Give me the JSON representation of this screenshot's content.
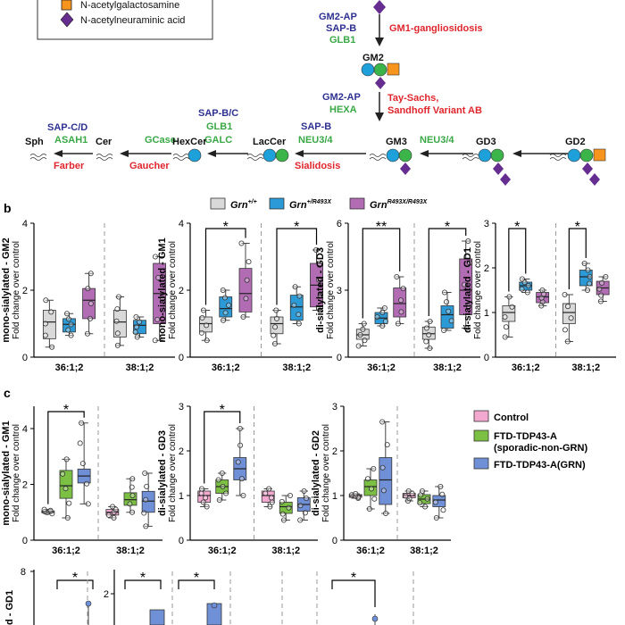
{
  "colors": {
    "wt": "#d9d9d9",
    "het": "#2b9ad6",
    "hom": "#b26cb4",
    "control": "#f2a8cf",
    "sporadic": "#7bc043",
    "grn": "#6f8fd6",
    "enzyme": "#2e3192",
    "gene": "#39a845",
    "disease": "#e0262d",
    "glc": "#1ea0db",
    "gal": "#3bb54a",
    "galnac": "#f7941d",
    "neu5ac": "#662d91"
  },
  "legend_top": {
    "items": [
      {
        "label": "N-acetylgalactosamine",
        "icon": "orange-square-icon"
      },
      {
        "label": "N-acetylneuraminic acid",
        "icon": "purple-diamond-icon"
      }
    ]
  },
  "pathway": {
    "gm1_step": {
      "enzyme1": "GM2-AP",
      "enzyme2": "SAP-B",
      "gene": "GLB1",
      "disease": "GM1-gangliosidosis"
    },
    "gm2_label": "GM2",
    "gm2_step": {
      "enzyme": "GM2-AP",
      "gene": "HEXA",
      "disease1": "Tay-Sachs,",
      "disease2": "Sandhoff Variant AB"
    },
    "nodes": {
      "sph": "Sph",
      "cer": "Cer",
      "hexcer": "HexCer",
      "laccer": "LacCer",
      "gm3": "GM3",
      "gd3": "GD3",
      "gd2": "GD2"
    },
    "sph_step": {
      "enzyme": "SAP-C/D",
      "gene": "ASAH1",
      "disease": "Farber"
    },
    "cer_step": {
      "gene": "GCase",
      "disease": "Gaucher"
    },
    "hexcer_step": {
      "enzyme": "SAP-B/C",
      "gene1": "GLB1",
      "gene2": "GALC"
    },
    "laccer_step": {
      "enzyme": "SAP-B",
      "gene": "NEU3/4",
      "disease": "Sialidosis"
    },
    "gd3_step": {
      "gene": "NEU3/4"
    }
  },
  "panel_b": {
    "letter": "b",
    "legend": [
      {
        "base": "Grn",
        "sup": "+/+"
      },
      {
        "base": "Grn",
        "sup": "+/R493X"
      },
      {
        "base": "Grn",
        "sup": "R493X/R493X"
      }
    ],
    "ylabel2": "Fold change over control",
    "plots": [
      {
        "title": "mono-sialylated - GM2",
        "ymax": 4,
        "yticks": [
          "0",
          "2",
          "4"
        ],
        "groups": [
          "36:1;2",
          "38:1;2"
        ],
        "sig": [],
        "boxes": [
          {
            "q1": 0.55,
            "med": 1.05,
            "q3": 1.4,
            "lo": 0.3,
            "hi": 1.7
          },
          {
            "q1": 0.75,
            "med": 0.98,
            "q3": 1.15,
            "lo": 0.65,
            "hi": 1.3
          },
          {
            "q1": 1.15,
            "med": 1.7,
            "q3": 2.05,
            "lo": 0.7,
            "hi": 2.5
          },
          {
            "q1": 0.6,
            "med": 1.05,
            "q3": 1.4,
            "lo": 0.35,
            "hi": 1.8
          },
          {
            "q1": 0.7,
            "med": 0.95,
            "q3": 1.1,
            "lo": 0.6,
            "hi": 1.2
          },
          {
            "q1": 1.0,
            "med": 1.9,
            "q3": 2.8,
            "lo": 0.5,
            "hi": 3.0
          }
        ]
      },
      {
        "title": "mono-sialylated - GM1",
        "ymax": 4,
        "yticks": [
          "0",
          "2",
          "4"
        ],
        "groups": [
          "36:1;2",
          "38:1;2"
        ],
        "sig": [
          {
            "from": 0,
            "to": 2,
            "label": "*"
          },
          {
            "from": 3,
            "to": 5,
            "label": "*"
          }
        ],
        "boxes": [
          {
            "q1": 0.75,
            "med": 1.0,
            "q3": 1.2,
            "lo": 0.5,
            "hi": 1.4
          },
          {
            "q1": 1.2,
            "med": 1.45,
            "q3": 1.8,
            "lo": 1.1,
            "hi": 2.0
          },
          {
            "q1": 1.35,
            "med": 1.9,
            "q3": 2.65,
            "lo": 1.2,
            "hi": 3.4
          },
          {
            "q1": 0.7,
            "med": 1.0,
            "q3": 1.2,
            "lo": 0.4,
            "hi": 1.4
          },
          {
            "q1": 1.1,
            "med": 1.5,
            "q3": 1.85,
            "lo": 1.0,
            "hi": 2.1
          },
          {
            "q1": 1.5,
            "med": 2.15,
            "q3": 2.8,
            "lo": 1.4,
            "hi": 3.2
          }
        ]
      },
      {
        "title": "di-sialylated - GD3",
        "ymax": 6,
        "yticks": [
          "0",
          "3",
          "6"
        ],
        "groups": [
          "36:1;2",
          "38:1;2"
        ],
        "sig": [
          {
            "from": 0,
            "to": 2,
            "label": "**"
          },
          {
            "from": 3,
            "to": 5,
            "label": "*"
          }
        ],
        "boxes": [
          {
            "q1": 0.8,
            "med": 1.0,
            "q3": 1.25,
            "lo": 0.5,
            "hi": 1.5
          },
          {
            "q1": 1.5,
            "med": 1.75,
            "q3": 2.0,
            "lo": 1.4,
            "hi": 2.2
          },
          {
            "q1": 1.8,
            "med": 2.4,
            "q3": 3.1,
            "lo": 1.5,
            "hi": 3.6
          },
          {
            "q1": 0.8,
            "med": 1.05,
            "q3": 1.35,
            "lo": 0.4,
            "hi": 1.6
          },
          {
            "q1": 1.3,
            "med": 1.9,
            "q3": 2.3,
            "lo": 1.2,
            "hi": 2.9
          },
          {
            "q1": 1.9,
            "med": 3.0,
            "q3": 4.4,
            "lo": 1.3,
            "hi": 5.2
          }
        ]
      },
      {
        "title": "di-sialylated - GD1",
        "ymax": 3,
        "yticks": [
          "0",
          "1",
          "2",
          "3"
        ],
        "groups": [
          "36:1;2",
          "38:1;2"
        ],
        "sig": [
          {
            "from": 0,
            "to": 1,
            "label": "*"
          },
          {
            "from": 3,
            "to": 4,
            "label": "*"
          }
        ],
        "boxes": [
          {
            "q1": 0.8,
            "med": 1.0,
            "q3": 1.15,
            "lo": 0.45,
            "hi": 1.35
          },
          {
            "q1": 1.5,
            "med": 1.6,
            "q3": 1.68,
            "lo": 1.45,
            "hi": 1.75
          },
          {
            "q1": 1.22,
            "med": 1.35,
            "q3": 1.45,
            "lo": 1.15,
            "hi": 1.5
          },
          {
            "q1": 0.75,
            "med": 1.0,
            "q3": 1.2,
            "lo": 0.35,
            "hi": 1.4
          },
          {
            "q1": 1.6,
            "med": 1.8,
            "q3": 1.95,
            "lo": 1.5,
            "hi": 2.1
          },
          {
            "q1": 1.4,
            "med": 1.55,
            "q3": 1.7,
            "lo": 1.25,
            "hi": 1.8
          }
        ]
      }
    ]
  },
  "panel_c": {
    "letter": "c",
    "legend": [
      "Control",
      "FTD-TDP43-A",
      "(sporadic-non-GRN)",
      "FTD-TDP43-A(GRN)"
    ],
    "ylabel2": "Fold change over control",
    "plots": [
      {
        "title": "mono-sialylated - GM1",
        "ymax": 4.8,
        "yticks": [
          "0",
          "2",
          "4"
        ],
        "tickvals": [
          0,
          2,
          4
        ],
        "groups": [
          "36:1;2",
          "38:1;2"
        ],
        "sig": [
          {
            "from": 0,
            "to": 2,
            "label": "*"
          }
        ],
        "boxes": [
          {
            "q1": 0.98,
            "med": 1.0,
            "q3": 1.05,
            "lo": 0.95,
            "hi": 1.1
          },
          {
            "q1": 1.5,
            "med": 1.95,
            "q3": 2.5,
            "lo": 0.8,
            "hi": 2.9
          },
          {
            "q1": 2.05,
            "med": 2.3,
            "q3": 2.55,
            "lo": 1.3,
            "hi": 4.2
          },
          {
            "q1": 0.9,
            "med": 1.0,
            "q3": 1.1,
            "lo": 0.8,
            "hi": 1.2
          },
          {
            "q1": 1.25,
            "med": 1.45,
            "q3": 1.7,
            "lo": 1.0,
            "hi": 2.2
          },
          {
            "q1": 1.0,
            "med": 1.4,
            "q3": 1.75,
            "lo": 0.5,
            "hi": 2.4
          }
        ]
      },
      {
        "title": "di-sialylated - GD3",
        "ymax": 3,
        "yticks": [
          "0",
          "1",
          "2",
          "3"
        ],
        "tickvals": [
          0,
          1,
          2,
          3
        ],
        "groups": [
          "36:1;2",
          "38:1;2"
        ],
        "sig": [
          {
            "from": 0,
            "to": 2,
            "label": "*"
          }
        ],
        "boxes": [
          {
            "q1": 0.85,
            "med": 1.0,
            "q3": 1.1,
            "lo": 0.75,
            "hi": 1.15
          },
          {
            "q1": 1.05,
            "med": 1.2,
            "q3": 1.35,
            "lo": 0.9,
            "hi": 1.5
          },
          {
            "q1": 1.35,
            "med": 1.6,
            "q3": 1.85,
            "lo": 1.0,
            "hi": 2.5
          },
          {
            "q1": 0.85,
            "med": 1.0,
            "q3": 1.1,
            "lo": 0.75,
            "hi": 1.15
          },
          {
            "q1": 0.6,
            "med": 0.75,
            "q3": 0.85,
            "lo": 0.45,
            "hi": 1.0
          },
          {
            "q1": 0.65,
            "med": 0.8,
            "q3": 0.95,
            "lo": 0.45,
            "hi": 1.1
          }
        ]
      },
      {
        "title": "di-sialylated - GD2",
        "ymax": 3,
        "yticks": [
          "0",
          "1",
          "2",
          "3"
        ],
        "tickvals": [
          0,
          1,
          2,
          3
        ],
        "groups": [
          "36:1;2",
          "38:1;2"
        ],
        "sig": [],
        "boxes": [
          {
            "q1": 0.96,
            "med": 1.0,
            "q3": 1.02,
            "lo": 0.94,
            "hi": 1.04
          },
          {
            "q1": 1.0,
            "med": 1.2,
            "q3": 1.35,
            "lo": 0.7,
            "hi": 1.6
          },
          {
            "q1": 0.8,
            "med": 1.35,
            "q3": 1.85,
            "lo": 0.6,
            "hi": 2.65
          },
          {
            "q1": 0.95,
            "med": 1.0,
            "q3": 1.05,
            "lo": 0.88,
            "hi": 1.1
          },
          {
            "q1": 0.82,
            "med": 0.92,
            "q3": 1.02,
            "lo": 0.75,
            "hi": 1.1
          },
          {
            "q1": 0.75,
            "med": 0.9,
            "q3": 1.0,
            "lo": 0.5,
            "hi": 1.2
          }
        ]
      }
    ]
  },
  "panel_d": {
    "ylabel": "d - GD1",
    "yticks": [
      "8",
      "2"
    ],
    "sig": [
      "*",
      "*",
      "*",
      "*"
    ]
  }
}
